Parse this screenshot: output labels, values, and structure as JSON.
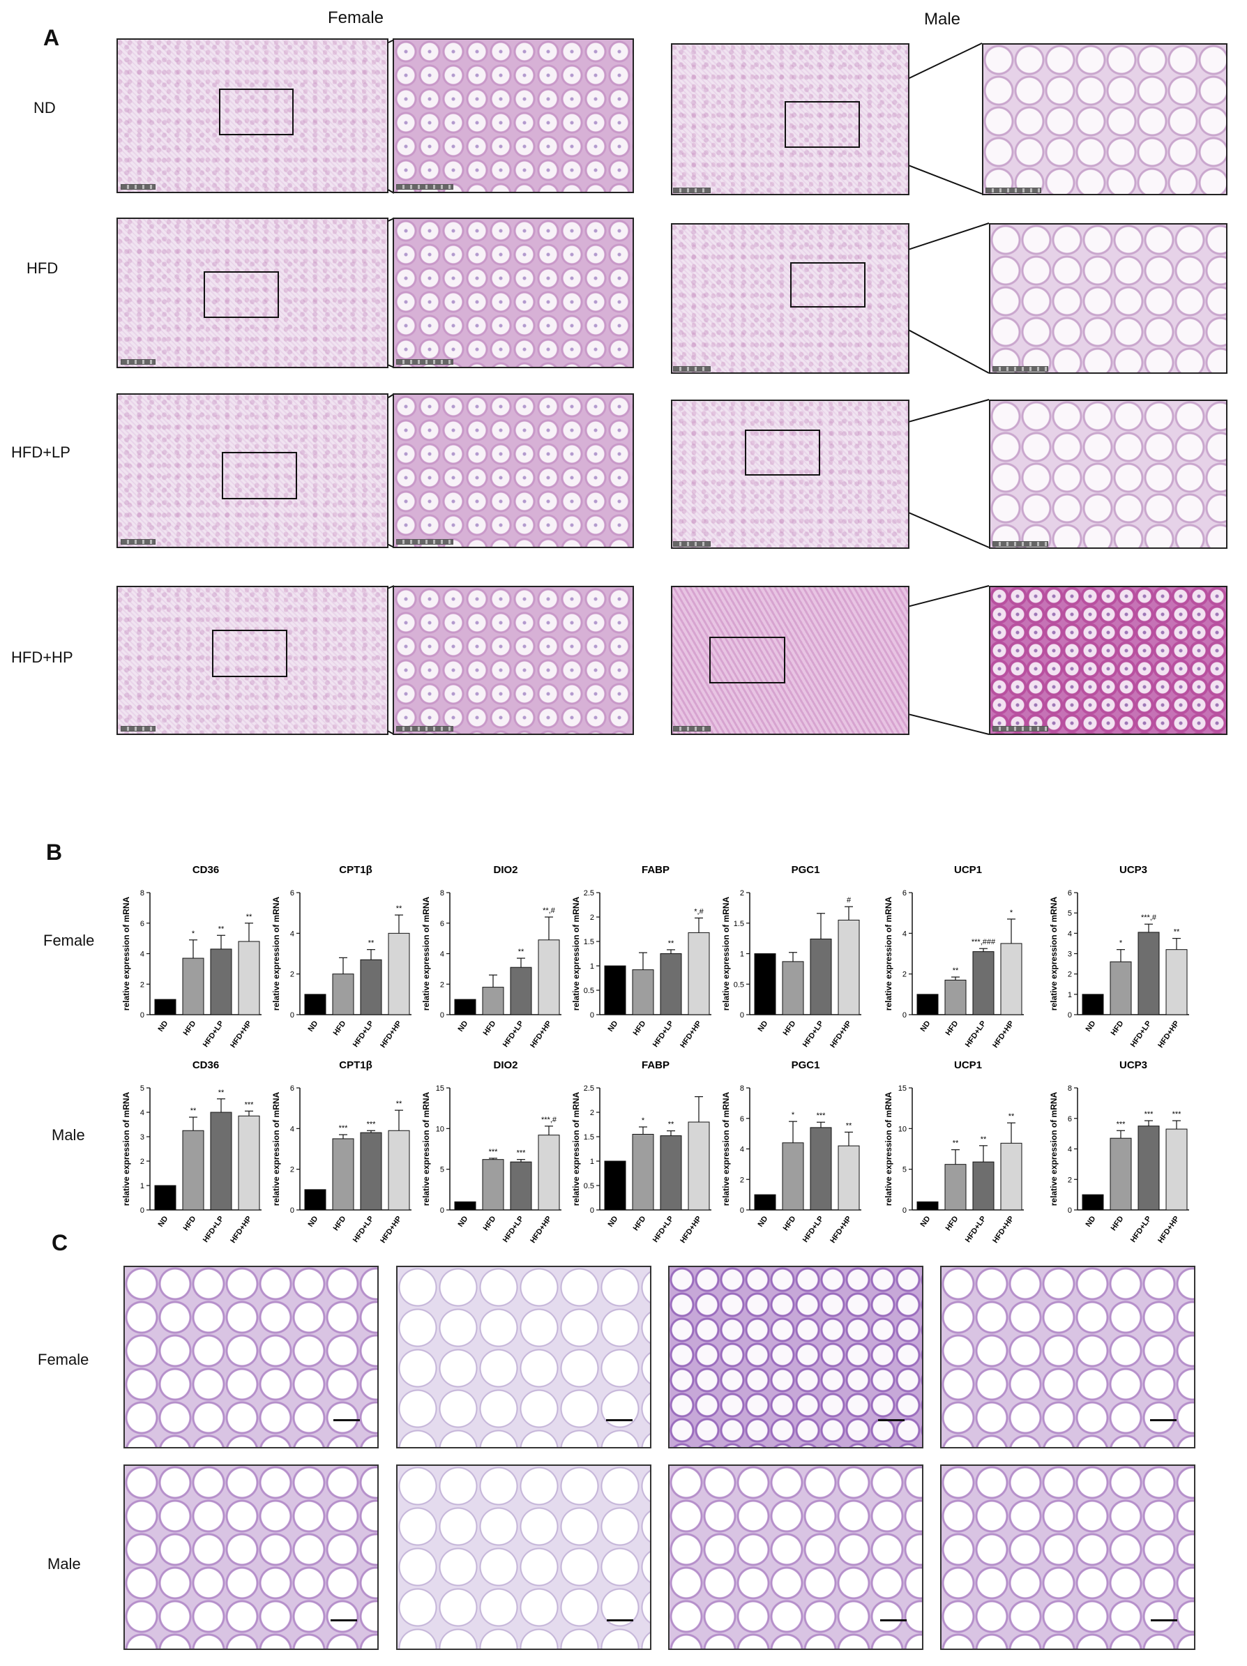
{
  "panel_a": {
    "letter": "A",
    "col_labels": [
      "Female",
      "Male"
    ],
    "row_labels": [
      "ND",
      "HFD",
      "HFD+LP",
      "HFD+HP"
    ]
  },
  "panel_b": {
    "letter": "B",
    "row_labels": [
      "Female",
      "Male"
    ],
    "ylabel": "relative expression of mRNA"
  },
  "panel_c": {
    "letter": "C",
    "row_labels": [
      "Female",
      "Male"
    ]
  },
  "chart_data": [
    {
      "type": "bar",
      "panel": "female",
      "title": "CD36",
      "categories": [
        "ND",
        "HFD",
        "HFD+LP",
        "HFD+HP"
      ],
      "values": [
        1.0,
        3.7,
        4.3,
        4.8
      ],
      "errors": [
        0,
        1.2,
        0.9,
        1.2
      ],
      "annotations": [
        "",
        "*",
        "**",
        "**"
      ],
      "ylabel": "relative expression of mRNA",
      "ylim": [
        0,
        8
      ],
      "yticks": [
        0,
        2,
        4,
        6,
        8
      ]
    },
    {
      "type": "bar",
      "panel": "female",
      "title": "CPT1β",
      "categories": [
        "ND",
        "HFD",
        "HFD+LP",
        "HFD+HP"
      ],
      "values": [
        1.0,
        2.0,
        2.7,
        4.0
      ],
      "errors": [
        0,
        0.8,
        0.5,
        0.9
      ],
      "annotations": [
        "",
        "",
        "**",
        "**"
      ],
      "ylabel": "relative expression of mRNA",
      "ylim": [
        0,
        6
      ],
      "yticks": [
        0,
        2,
        4,
        6
      ]
    },
    {
      "type": "bar",
      "panel": "female",
      "title": "DIO2",
      "categories": [
        "ND",
        "HFD",
        "HFD+LP",
        "HFD+HP"
      ],
      "values": [
        1.0,
        1.8,
        3.1,
        4.9
      ],
      "errors": [
        0,
        0.8,
        0.6,
        1.5
      ],
      "annotations": [
        "",
        "",
        "**",
        "**,#"
      ],
      "ylabel": "relative expression of mRNA",
      "ylim": [
        0,
        8
      ],
      "yticks": [
        0,
        2,
        4,
        6,
        8
      ]
    },
    {
      "type": "bar",
      "panel": "female",
      "title": "FABP",
      "categories": [
        "ND",
        "HFD",
        "HFD+LP",
        "HFD+HP"
      ],
      "values": [
        1.0,
        0.92,
        1.25,
        1.68
      ],
      "errors": [
        0,
        0.35,
        0.08,
        0.3
      ],
      "annotations": [
        "",
        "",
        "**",
        "*,#"
      ],
      "ylabel": "relative expression of mRNA",
      "ylim": [
        0,
        2.5
      ],
      "yticks": [
        0,
        0.5,
        1.0,
        1.5,
        2.0,
        2.5
      ]
    },
    {
      "type": "bar",
      "panel": "female",
      "title": "PGC1",
      "categories": [
        "ND",
        "HFD",
        "HFD+LP",
        "HFD+HP"
      ],
      "values": [
        1.0,
        0.87,
        1.24,
        1.55
      ],
      "errors": [
        0,
        0.15,
        0.42,
        0.22
      ],
      "annotations": [
        "",
        "",
        "",
        "#"
      ],
      "ylabel": "relative expression of mRNA",
      "ylim": [
        0,
        2.0
      ],
      "yticks": [
        0,
        0.5,
        1.0,
        1.5,
        2.0
      ]
    },
    {
      "type": "bar",
      "panel": "female",
      "title": "UCP1",
      "categories": [
        "ND",
        "HFD",
        "HFD+LP",
        "HFD+HP"
      ],
      "values": [
        1.0,
        1.7,
        3.1,
        3.5
      ],
      "errors": [
        0,
        0.15,
        0.15,
        1.2
      ],
      "annotations": [
        "",
        "**",
        "***,###",
        "*"
      ],
      "ylabel": "relative expression of mRNA",
      "ylim": [
        0,
        6
      ],
      "yticks": [
        0,
        2,
        4,
        6
      ]
    },
    {
      "type": "bar",
      "panel": "female",
      "title": "UCP3",
      "categories": [
        "ND",
        "HFD",
        "HFD+LP",
        "HFD+HP"
      ],
      "values": [
        1.0,
        2.6,
        4.05,
        3.2
      ],
      "errors": [
        0,
        0.6,
        0.4,
        0.55
      ],
      "annotations": [
        "",
        "*",
        "***,#",
        "**"
      ],
      "ylabel": "relative expression of mRNA",
      "ylim": [
        0,
        6
      ],
      "yticks": [
        0,
        1,
        2,
        3,
        4,
        5,
        6
      ]
    },
    {
      "type": "bar",
      "panel": "male",
      "title": "CD36",
      "categories": [
        "ND",
        "HFD",
        "HFD+LP",
        "HFD+HP"
      ],
      "values": [
        1.0,
        3.25,
        4.0,
        3.85
      ],
      "errors": [
        0,
        0.55,
        0.55,
        0.2
      ],
      "annotations": [
        "",
        "**",
        "**",
        "***"
      ],
      "ylabel": "relative expression of mRNA",
      "ylim": [
        0,
        5
      ],
      "yticks": [
        0,
        1,
        2,
        3,
        4,
        5
      ]
    },
    {
      "type": "bar",
      "panel": "male",
      "title": "CPT1β",
      "categories": [
        "ND",
        "HFD",
        "HFD+LP",
        "HFD+HP"
      ],
      "values": [
        1.0,
        3.5,
        3.8,
        3.9
      ],
      "errors": [
        0,
        0.2,
        0.1,
        1.0
      ],
      "annotations": [
        "",
        "***",
        "***",
        "**"
      ],
      "ylabel": "relative expression of mRNA",
      "ylim": [
        0,
        6
      ],
      "yticks": [
        0,
        2,
        4,
        6
      ]
    },
    {
      "type": "bar",
      "panel": "male",
      "title": "DIO2",
      "categories": [
        "ND",
        "HFD",
        "HFD+LP",
        "HFD+HP"
      ],
      "values": [
        1.0,
        6.2,
        5.9,
        9.2
      ],
      "errors": [
        0,
        0.15,
        0.3,
        1.1
      ],
      "annotations": [
        "",
        "***",
        "***",
        "***,#"
      ],
      "ylabel": "relative expression of mRNA",
      "ylim": [
        0,
        15
      ],
      "yticks": [
        0,
        5,
        10,
        15
      ]
    },
    {
      "type": "bar",
      "panel": "male",
      "title": "FABP",
      "categories": [
        "ND",
        "HFD",
        "HFD+LP",
        "HFD+HP"
      ],
      "values": [
        1.0,
        1.55,
        1.52,
        1.8
      ],
      "errors": [
        0,
        0.15,
        0.1,
        0.52
      ],
      "annotations": [
        "",
        "*",
        "**",
        ""
      ],
      "ylabel": "relative expression of mRNA",
      "ylim": [
        0,
        2.5
      ],
      "yticks": [
        0,
        0.5,
        1.0,
        1.5,
        2.0,
        2.5
      ]
    },
    {
      "type": "bar",
      "panel": "male",
      "title": "PGC1",
      "categories": [
        "ND",
        "HFD",
        "HFD+LP",
        "HFD+HP"
      ],
      "values": [
        1.0,
        4.4,
        5.4,
        4.2
      ],
      "errors": [
        0,
        1.4,
        0.35,
        0.9
      ],
      "annotations": [
        "",
        "*",
        "***",
        "**"
      ],
      "ylabel": "relative expression of mRNA",
      "ylim": [
        0,
        8
      ],
      "yticks": [
        0,
        2,
        4,
        6,
        8
      ]
    },
    {
      "type": "bar",
      "panel": "male",
      "title": "UCP1",
      "categories": [
        "ND",
        "HFD",
        "HFD+LP",
        "HFD+HP"
      ],
      "values": [
        1.0,
        5.6,
        5.9,
        8.2
      ],
      "errors": [
        0,
        1.8,
        2.0,
        2.5
      ],
      "annotations": [
        "",
        "**",
        "**",
        "**"
      ],
      "ylabel": "relative expression of mRNA",
      "ylim": [
        0,
        15
      ],
      "yticks": [
        0,
        5,
        10,
        15
      ]
    },
    {
      "type": "bar",
      "panel": "male",
      "title": "UCP3",
      "categories": [
        "ND",
        "HFD",
        "HFD+LP",
        "HFD+HP"
      ],
      "values": [
        1.0,
        4.7,
        5.5,
        5.3
      ],
      "errors": [
        0,
        0.5,
        0.35,
        0.55
      ],
      "annotations": [
        "",
        "***",
        "***",
        "***"
      ],
      "ylabel": "relative expression of mRNA",
      "ylim": [
        0,
        8
      ],
      "yticks": [
        0,
        2,
        4,
        6,
        8
      ]
    }
  ],
  "colors": {
    "ND": "#000000",
    "HFD": "#9e9e9e",
    "HFD+LP": "#6e6e6e",
    "HFD+HP": "#d6d6d6"
  }
}
